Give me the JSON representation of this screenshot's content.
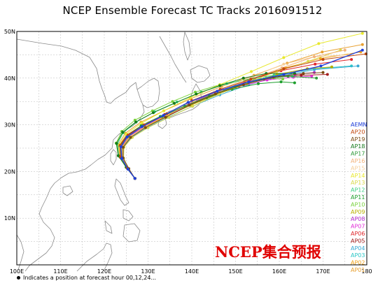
{
  "title": "NCEP Ensemble Forecast TC Tracks 2016091512",
  "watermark": "NCEP集合预报",
  "footnote": "Indicates a position at forecast hour 00,12,24...",
  "map": {
    "lon_range": [
      100,
      180
    ],
    "lat_range": [
      0,
      50
    ],
    "lon_ticks": [
      {
        "value": 100,
        "label": "100E"
      },
      {
        "value": 110,
        "label": "110E"
      },
      {
        "value": 120,
        "label": "120E"
      },
      {
        "value": 130,
        "label": "130E"
      },
      {
        "value": 140,
        "label": "140E"
      },
      {
        "value": 150,
        "label": "150E"
      },
      {
        "value": 160,
        "label": "160E"
      },
      {
        "value": 170,
        "label": "170E"
      },
      {
        "value": 180,
        "label": "180"
      }
    ],
    "lat_ticks": [
      {
        "value": 10,
        "label": "10N"
      },
      {
        "value": 20,
        "label": "20N"
      },
      {
        "value": 30,
        "label": "30N"
      },
      {
        "value": 40,
        "label": "40N"
      },
      {
        "value": 50,
        "label": "50N"
      }
    ],
    "grid_color": "#b9b9b9",
    "coast_color": "#8a8a8a"
  },
  "members": [
    {
      "name": "AEMN",
      "color": "#1f3fdd",
      "track": [
        [
          127.0,
          18.5
        ],
        [
          125.4,
          20.5
        ],
        [
          124.0,
          22.8
        ],
        [
          123.8,
          25.3
        ],
        [
          125.2,
          27.4
        ],
        [
          128.6,
          29.6
        ],
        [
          133.5,
          32.0
        ],
        [
          139.2,
          34.8
        ],
        [
          145.8,
          37.2
        ],
        [
          153.0,
          39.2
        ],
        [
          161.0,
          40.8
        ],
        [
          169.5,
          42.6
        ],
        [
          179.0,
          46.0
        ]
      ]
    },
    {
      "name": "AP20",
      "color": "#c0480f",
      "track": [
        [
          127.0,
          18.5
        ],
        [
          125.2,
          20.8
        ],
        [
          123.7,
          23.2
        ],
        [
          123.6,
          25.6
        ],
        [
          125.4,
          27.8
        ],
        [
          129.2,
          30.0
        ],
        [
          134.3,
          32.4
        ],
        [
          140.0,
          35.2
        ],
        [
          146.5,
          37.6
        ],
        [
          153.5,
          39.8
        ],
        [
          161.0,
          42.0
        ],
        [
          170.0,
          44.0
        ],
        [
          179.8,
          45.2
        ]
      ]
    },
    {
      "name": "AP19",
      "color": "#7a4a10",
      "track": [
        [
          127.0,
          18.5
        ],
        [
          125.6,
          20.6
        ],
        [
          124.3,
          22.9
        ],
        [
          124.3,
          25.2
        ],
        [
          126.0,
          27.3
        ],
        [
          129.4,
          29.4
        ],
        [
          134.0,
          31.6
        ],
        [
          139.4,
          34.2
        ],
        [
          145.4,
          36.6
        ],
        [
          151.8,
          38.6
        ],
        [
          158.6,
          40.2
        ],
        [
          165.5,
          41.0
        ],
        [
          170.0,
          41.2
        ]
      ]
    },
    {
      "name": "AP18",
      "color": "#157a1c",
      "track": [
        [
          127.0,
          18.5
        ],
        [
          125.0,
          20.9
        ],
        [
          123.2,
          23.4
        ],
        [
          122.8,
          26.0
        ],
        [
          124.2,
          28.4
        ],
        [
          127.2,
          30.6
        ],
        [
          131.2,
          32.6
        ],
        [
          136.0,
          34.6
        ],
        [
          141.0,
          36.6
        ],
        [
          146.4,
          38.4
        ],
        [
          151.8,
          40.0
        ],
        [
          157.0,
          41.0
        ],
        [
          163.5,
          41.0
        ]
      ]
    },
    {
      "name": "AP17",
      "color": "#2f9a3a",
      "track": [
        [
          127.0,
          18.5
        ],
        [
          125.3,
          20.7
        ],
        [
          123.9,
          23.0
        ],
        [
          123.8,
          25.4
        ],
        [
          125.5,
          27.6
        ],
        [
          128.8,
          29.8
        ],
        [
          133.2,
          31.8
        ],
        [
          138.4,
          34.0
        ],
        [
          144.0,
          36.2
        ],
        [
          150.0,
          38.2
        ],
        [
          156.5,
          39.8
        ],
        [
          162.0,
          40.4
        ],
        [
          168.5,
          40.0
        ]
      ]
    },
    {
      "name": "AP16",
      "color": "#f2b27a",
      "track": [
        [
          127.0,
          18.5
        ],
        [
          125.5,
          20.6
        ],
        [
          124.2,
          22.9
        ],
        [
          124.2,
          25.3
        ],
        [
          125.9,
          27.5
        ],
        [
          129.6,
          29.8
        ],
        [
          134.6,
          32.2
        ],
        [
          140.4,
          34.8
        ],
        [
          146.8,
          37.4
        ],
        [
          153.6,
          39.8
        ],
        [
          160.6,
          42.2
        ],
        [
          168.0,
          44.6
        ],
        [
          175.0,
          46.0
        ]
      ]
    },
    {
      "name": "AP15",
      "color": "#f7cf9a",
      "track": [
        [
          127.0,
          18.5
        ],
        [
          125.4,
          20.7
        ],
        [
          124.0,
          23.0
        ],
        [
          123.9,
          25.5
        ],
        [
          125.7,
          27.7
        ],
        [
          129.4,
          30.0
        ],
        [
          134.6,
          32.5
        ],
        [
          140.6,
          35.2
        ],
        [
          147.0,
          37.8
        ],
        [
          154.0,
          40.4
        ],
        [
          161.0,
          43.0
        ],
        [
          168.0,
          44.6
        ],
        [
          176.0,
          45.0
        ]
      ]
    },
    {
      "name": "AP14",
      "color": "#e8e82e",
      "track": [
        [
          127.0,
          18.5
        ],
        [
          125.2,
          20.8
        ],
        [
          123.6,
          23.2
        ],
        [
          123.4,
          25.7
        ],
        [
          125.0,
          28.0
        ],
        [
          128.6,
          30.4
        ],
        [
          133.6,
          33.0
        ],
        [
          139.6,
          35.8
        ],
        [
          146.4,
          38.6
        ],
        [
          153.6,
          41.4
        ],
        [
          161.0,
          44.4
        ],
        [
          169.0,
          47.4
        ],
        [
          179.0,
          49.6
        ]
      ]
    },
    {
      "name": "AP13",
      "color": "#d9d94a",
      "track": [
        [
          127.0,
          18.5
        ],
        [
          125.6,
          20.6
        ],
        [
          124.4,
          22.8
        ],
        [
          124.5,
          25.2
        ],
        [
          126.4,
          27.3
        ],
        [
          130.0,
          29.4
        ],
        [
          134.8,
          31.6
        ],
        [
          140.2,
          34.0
        ],
        [
          146.2,
          36.6
        ],
        [
          152.6,
          39.0
        ],
        [
          159.4,
          41.4
        ],
        [
          166.6,
          43.6
        ],
        [
          174.0,
          46.0
        ]
      ]
    },
    {
      "name": "AP12",
      "color": "#3fcf86",
      "track": [
        [
          127.0,
          18.5
        ],
        [
          125.1,
          20.9
        ],
        [
          123.3,
          23.3
        ],
        [
          123.0,
          25.9
        ],
        [
          124.3,
          28.3
        ],
        [
          127.3,
          30.6
        ],
        [
          131.5,
          32.8
        ],
        [
          136.6,
          34.9
        ],
        [
          142.2,
          37.0
        ],
        [
          148.0,
          38.8
        ],
        [
          154.0,
          40.0
        ],
        [
          158.8,
          40.6
        ],
        [
          163.0,
          40.4
        ]
      ]
    },
    {
      "name": "AP11",
      "color": "#1c9e2c",
      "track": [
        [
          127.0,
          18.5
        ],
        [
          125.3,
          20.7
        ],
        [
          123.8,
          23.0
        ],
        [
          123.6,
          25.4
        ],
        [
          125.2,
          27.6
        ],
        [
          128.4,
          29.8
        ],
        [
          132.8,
          31.8
        ],
        [
          137.8,
          33.8
        ],
        [
          143.4,
          35.8
        ],
        [
          149.2,
          37.6
        ],
        [
          155.2,
          38.8
        ],
        [
          160.4,
          39.2
        ],
        [
          163.5,
          39.0
        ]
      ]
    },
    {
      "name": "AP10",
      "color": "#79d23c",
      "track": [
        [
          127.0,
          18.5
        ],
        [
          125.0,
          20.9
        ],
        [
          123.2,
          23.4
        ],
        [
          122.7,
          26.1
        ],
        [
          124.0,
          28.6
        ],
        [
          127.0,
          31.0
        ],
        [
          131.0,
          33.0
        ],
        [
          135.6,
          35.0
        ],
        [
          140.8,
          37.0
        ],
        [
          146.4,
          38.6
        ],
        [
          152.0,
          39.6
        ],
        [
          157.0,
          40.0
        ],
        [
          160.8,
          39.8
        ]
      ]
    },
    {
      "name": "AP09",
      "color": "#b8b000",
      "track": [
        [
          127.0,
          18.5
        ],
        [
          125.5,
          20.6
        ],
        [
          124.2,
          22.9
        ],
        [
          124.1,
          25.3
        ],
        [
          125.8,
          27.5
        ],
        [
          129.4,
          29.6
        ],
        [
          134.2,
          31.8
        ],
        [
          139.8,
          34.2
        ],
        [
          146.0,
          36.6
        ],
        [
          152.6,
          38.8
        ],
        [
          159.4,
          40.8
        ],
        [
          166.4,
          42.0
        ],
        [
          172.0,
          42.4
        ]
      ]
    },
    {
      "name": "AP08",
      "color": "#b42ad1",
      "track": [
        [
          127.0,
          18.5
        ],
        [
          125.3,
          20.7
        ],
        [
          123.8,
          23.0
        ],
        [
          123.7,
          25.4
        ],
        [
          125.4,
          27.6
        ],
        [
          128.9,
          29.8
        ],
        [
          133.6,
          32.0
        ],
        [
          139.0,
          34.4
        ],
        [
          145.0,
          36.8
        ],
        [
          151.4,
          38.8
        ],
        [
          158.0,
          40.0
        ],
        [
          163.6,
          40.8
        ],
        [
          168.0,
          41.2
        ]
      ]
    },
    {
      "name": "AP07",
      "color": "#e22fd8",
      "track": [
        [
          127.0,
          18.5
        ],
        [
          125.4,
          20.6
        ],
        [
          124.0,
          22.9
        ],
        [
          123.9,
          25.3
        ],
        [
          125.6,
          27.5
        ],
        [
          129.0,
          29.6
        ],
        [
          133.6,
          31.8
        ],
        [
          138.8,
          34.0
        ],
        [
          144.6,
          36.2
        ],
        [
          150.8,
          38.2
        ],
        [
          157.2,
          39.6
        ],
        [
          163.2,
          40.2
        ],
        [
          167.4,
          40.4
        ]
      ]
    },
    {
      "name": "AP06",
      "color": "#e0262a",
      "track": [
        [
          127.0,
          18.5
        ],
        [
          125.5,
          20.6
        ],
        [
          124.2,
          22.9
        ],
        [
          124.2,
          25.4
        ],
        [
          126.0,
          27.6
        ],
        [
          129.6,
          29.8
        ],
        [
          134.4,
          32.0
        ],
        [
          140.0,
          34.6
        ],
        [
          146.4,
          37.2
        ],
        [
          153.2,
          39.6
        ],
        [
          160.4,
          41.6
        ],
        [
          168.2,
          43.0
        ],
        [
          176.5,
          44.0
        ]
      ]
    },
    {
      "name": "AP05",
      "color": "#a41d1d",
      "track": [
        [
          127.0,
          18.5
        ],
        [
          125.2,
          20.8
        ],
        [
          123.6,
          23.1
        ],
        [
          123.5,
          25.6
        ],
        [
          125.2,
          27.8
        ],
        [
          128.8,
          30.0
        ],
        [
          133.8,
          32.2
        ],
        [
          139.4,
          34.6
        ],
        [
          145.6,
          37.0
        ],
        [
          152.0,
          39.0
        ],
        [
          158.6,
          40.2
        ],
        [
          165.0,
          40.6
        ],
        [
          171.0,
          40.8
        ]
      ]
    },
    {
      "name": "AP04",
      "color": "#36a9d4",
      "track": [
        [
          127.0,
          18.5
        ],
        [
          125.6,
          20.6
        ],
        [
          124.4,
          22.8
        ],
        [
          124.4,
          25.2
        ],
        [
          126.2,
          27.3
        ],
        [
          129.8,
          29.4
        ],
        [
          134.6,
          31.6
        ],
        [
          140.2,
          34.0
        ],
        [
          146.4,
          36.4
        ],
        [
          153.0,
          38.6
        ],
        [
          160.0,
          40.4
        ],
        [
          168.0,
          41.8
        ],
        [
          178.0,
          42.6
        ]
      ]
    },
    {
      "name": "AP03",
      "color": "#2bc6c6",
      "track": [
        [
          127.0,
          18.5
        ],
        [
          125.3,
          20.7
        ],
        [
          123.8,
          23.0
        ],
        [
          123.7,
          25.5
        ],
        [
          125.4,
          27.7
        ],
        [
          129.0,
          29.9
        ],
        [
          134.0,
          32.2
        ],
        [
          139.8,
          34.6
        ],
        [
          146.2,
          37.0
        ],
        [
          153.0,
          39.2
        ],
        [
          160.2,
          40.8
        ],
        [
          168.0,
          42.0
        ],
        [
          176.5,
          42.6
        ]
      ]
    },
    {
      "name": "AP02",
      "color": "#f0a21a",
      "track": [
        [
          127.0,
          18.5
        ],
        [
          125.4,
          20.7
        ],
        [
          123.9,
          23.0
        ],
        [
          123.8,
          25.4
        ],
        [
          125.5,
          27.6
        ],
        [
          129.2,
          29.8
        ],
        [
          134.4,
          32.2
        ],
        [
          140.4,
          34.8
        ],
        [
          147.0,
          37.4
        ],
        [
          154.0,
          39.8
        ],
        [
          161.4,
          42.2
        ],
        [
          169.4,
          44.2
        ],
        [
          178.6,
          45.6
        ]
      ]
    },
    {
      "name": "AP01",
      "color": "#e8a030",
      "track": [
        [
          127.0,
          18.5
        ],
        [
          125.2,
          20.9
        ],
        [
          123.5,
          23.3
        ],
        [
          123.2,
          25.8
        ],
        [
          124.8,
          28.2
        ],
        [
          128.4,
          30.6
        ],
        [
          133.6,
          33.0
        ],
        [
          139.8,
          35.6
        ],
        [
          146.8,
          38.2
        ],
        [
          154.2,
          40.6
        ],
        [
          161.8,
          43.2
        ],
        [
          169.8,
          45.6
        ],
        [
          179.0,
          47.2
        ]
      ]
    }
  ]
}
